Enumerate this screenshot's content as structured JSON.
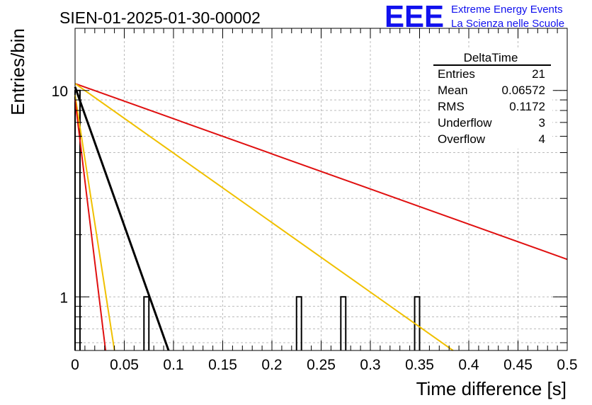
{
  "header": {
    "run_title": "SIEN-01-2025-01-30-00002",
    "logo_text": "EEE",
    "logo_line1": "Extreme Energy Events",
    "logo_line2": "La Scienza nelle Scuole"
  },
  "stats_box": {
    "title": "DeltaTime",
    "rows": [
      {
        "label": "Entries",
        "value": "21"
      },
      {
        "label": "Mean",
        "value": "0.06572"
      },
      {
        "label": "RMS",
        "value": "0.1172"
      },
      {
        "label": "Underflow",
        "value": "3"
      },
      {
        "label": "Overflow",
        "value": "4"
      }
    ]
  },
  "chart_data": {
    "type": "bar",
    "histogram": "step",
    "xlabel": "Time difference [s]",
    "ylabel": "Entries/bin",
    "xlim": [
      0,
      0.5
    ],
    "ylim": [
      0.55,
      20
    ],
    "yscale": "log",
    "grid": true,
    "x_ticks": [
      "0",
      "0.05",
      "0.1",
      "0.15",
      "0.2",
      "0.25",
      "0.3",
      "0.35",
      "0.4",
      "0.45",
      "0.5"
    ],
    "y_ticks": [
      "1",
      "10"
    ],
    "bins": [
      {
        "x0": 0.0,
        "x1": 0.005,
        "value": 10
      },
      {
        "x0": 0.07,
        "x1": 0.075,
        "value": 1
      },
      {
        "x0": 0.225,
        "x1": 0.23,
        "value": 1
      },
      {
        "x0": 0.27,
        "x1": 0.275,
        "value": 1
      },
      {
        "x0": 0.345,
        "x1": 0.35,
        "value": 1
      }
    ],
    "fits": [
      {
        "color": "#e01010",
        "x": [
          0.0,
          0.5
        ],
        "y": [
          10.8,
          1.52
        ]
      },
      {
        "color": "#f0c000",
        "x": [
          0.0,
          0.384
        ],
        "y": [
          10.8,
          0.55
        ]
      },
      {
        "color": "#000000",
        "x": [
          0.0,
          0.095
        ],
        "y": [
          10.4,
          0.55
        ]
      },
      {
        "color": "#f0c000",
        "x": [
          0.0,
          0.04
        ],
        "y": [
          9.5,
          0.55
        ]
      },
      {
        "color": "#e01010",
        "x": [
          0.0,
          0.031
        ],
        "y": [
          9.0,
          0.55
        ]
      }
    ]
  }
}
